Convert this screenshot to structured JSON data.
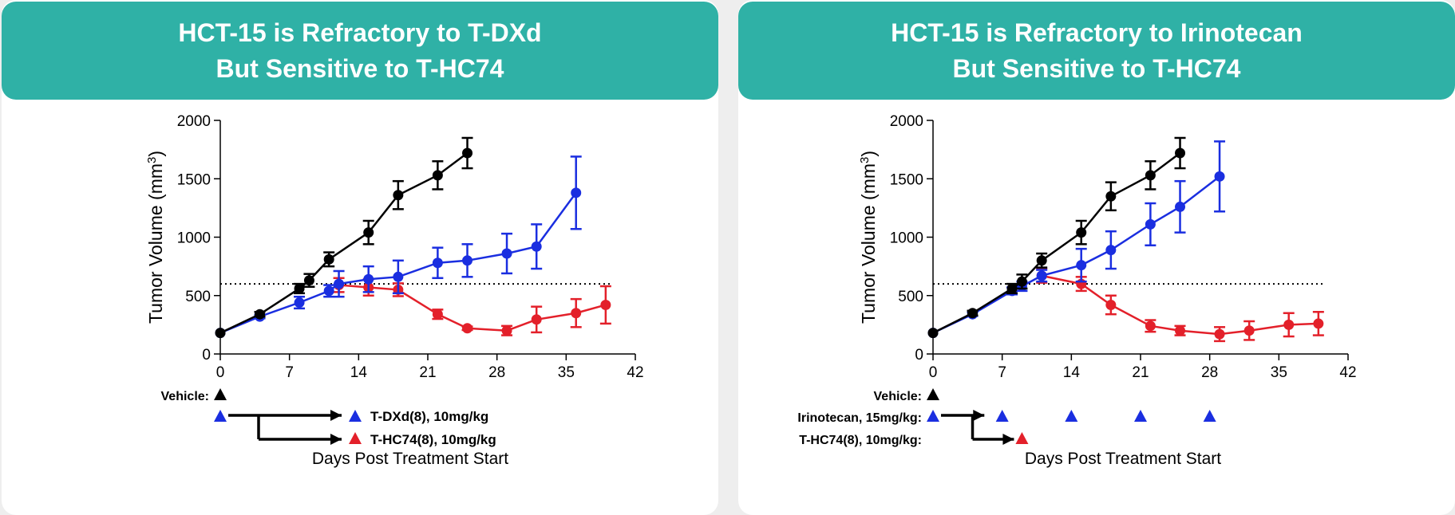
{
  "colors": {
    "header_bg": "#2fb1a6",
    "vehicle": "#000000",
    "blue": "#1a2ee0",
    "red": "#e3202a"
  },
  "chart_data": [
    {
      "type": "line",
      "title_line1": "HCT-15 is Refractory to T-DXd",
      "title_line2": "But Sensitive to T-HC74",
      "ylabel_prefix": "Tumor Volume (mm",
      "ylabel_sup": "3",
      "ylabel_suffix": ")",
      "xlabel": "Days Post Treatment Start",
      "xlim": [
        0,
        42
      ],
      "ylim": [
        0,
        2000
      ],
      "xticks": [
        0,
        7,
        14,
        21,
        28,
        35,
        42
      ],
      "yticks": [
        0,
        500,
        1000,
        1500,
        2000
      ],
      "threshold": 600,
      "series": [
        {
          "name": "Vehicle",
          "color": "#000000",
          "marker": "circle",
          "x": [
            0,
            4,
            8,
            9,
            11,
            15,
            18,
            22,
            25
          ],
          "y": [
            180,
            340,
            560,
            630,
            810,
            1040,
            1360,
            1530,
            1720
          ],
          "err": [
            0,
            20,
            40,
            55,
            60,
            100,
            120,
            120,
            130
          ]
        },
        {
          "name": "T-DXd(8), 10mg/kg",
          "color": "#1a2ee0",
          "marker": "circle",
          "x": [
            0,
            4,
            8,
            11,
            12,
            15,
            18,
            22,
            25,
            29,
            32,
            36
          ],
          "y": [
            180,
            320,
            440,
            540,
            600,
            640,
            660,
            780,
            800,
            860,
            920,
            1380
          ],
          "err": [
            0,
            15,
            50,
            50,
            110,
            110,
            140,
            130,
            140,
            170,
            190,
            310
          ]
        },
        {
          "name": "T-HC74(8), 10mg/kg",
          "color": "#e3202a",
          "marker": "circle",
          "x": [
            12,
            15,
            18,
            22,
            25,
            29,
            32,
            36,
            39
          ],
          "y": [
            590,
            570,
            550,
            340,
            220,
            200,
            295,
            350,
            420
          ],
          "err": [
            60,
            70,
            55,
            40,
            15,
            40,
            110,
            120,
            160
          ]
        }
      ],
      "dosing": {
        "vehicle_label": "Vehicle:",
        "arm_a_label": "T-DXd(8), 10mg/kg",
        "arm_b_label": "T-HC74(8), 10mg/kg"
      }
    },
    {
      "type": "line",
      "title_line1": "HCT-15 is Refractory to Irinotecan",
      "title_line2": "But Sensitive to T-HC74",
      "ylabel_prefix": "Tumor Volume (mm",
      "ylabel_sup": "3",
      "ylabel_suffix": ")",
      "xlabel": "Days Post Treatment Start",
      "xlim": [
        0,
        42
      ],
      "ylim": [
        0,
        2000
      ],
      "xticks": [
        0,
        7,
        14,
        21,
        28,
        35,
        42
      ],
      "yticks": [
        0,
        500,
        1000,
        1500,
        2000
      ],
      "threshold": 600,
      "series": [
        {
          "name": "Vehicle",
          "color": "#000000",
          "marker": "circle",
          "x": [
            0,
            4,
            8,
            9,
            11,
            15,
            18,
            22,
            25
          ],
          "y": [
            180,
            350,
            560,
            620,
            800,
            1040,
            1350,
            1530,
            1720
          ],
          "err": [
            0,
            20,
            40,
            60,
            60,
            100,
            120,
            120,
            130
          ]
        },
        {
          "name": "Irinotecan, 15mg/kg",
          "color": "#1a2ee0",
          "marker": "circle",
          "x": [
            0,
            4,
            8,
            9,
            11,
            15,
            18,
            22,
            25,
            29
          ],
          "y": [
            180,
            340,
            540,
            580,
            670,
            760,
            890,
            1110,
            1260,
            1520
          ],
          "err": [
            0,
            15,
            30,
            40,
            50,
            140,
            160,
            180,
            220,
            300
          ]
        },
        {
          "name": "T-HC74(8), 10mg/kg",
          "color": "#e3202a",
          "marker": "circle",
          "x": [
            11,
            15,
            18,
            22,
            25,
            29,
            32,
            36,
            39
          ],
          "y": [
            670,
            600,
            420,
            240,
            200,
            170,
            200,
            250,
            260
          ],
          "err": [
            60,
            60,
            80,
            50,
            40,
            60,
            80,
            100,
            100
          ]
        }
      ],
      "dosing": {
        "vehicle_label": "Vehicle:",
        "arm_a_label": "Irinotecan, 15mg/kg:",
        "arm_b_label": "T-HC74(8), 10mg/kg:",
        "arm_a_days": [
          0,
          7,
          14,
          21,
          28
        ]
      }
    }
  ]
}
